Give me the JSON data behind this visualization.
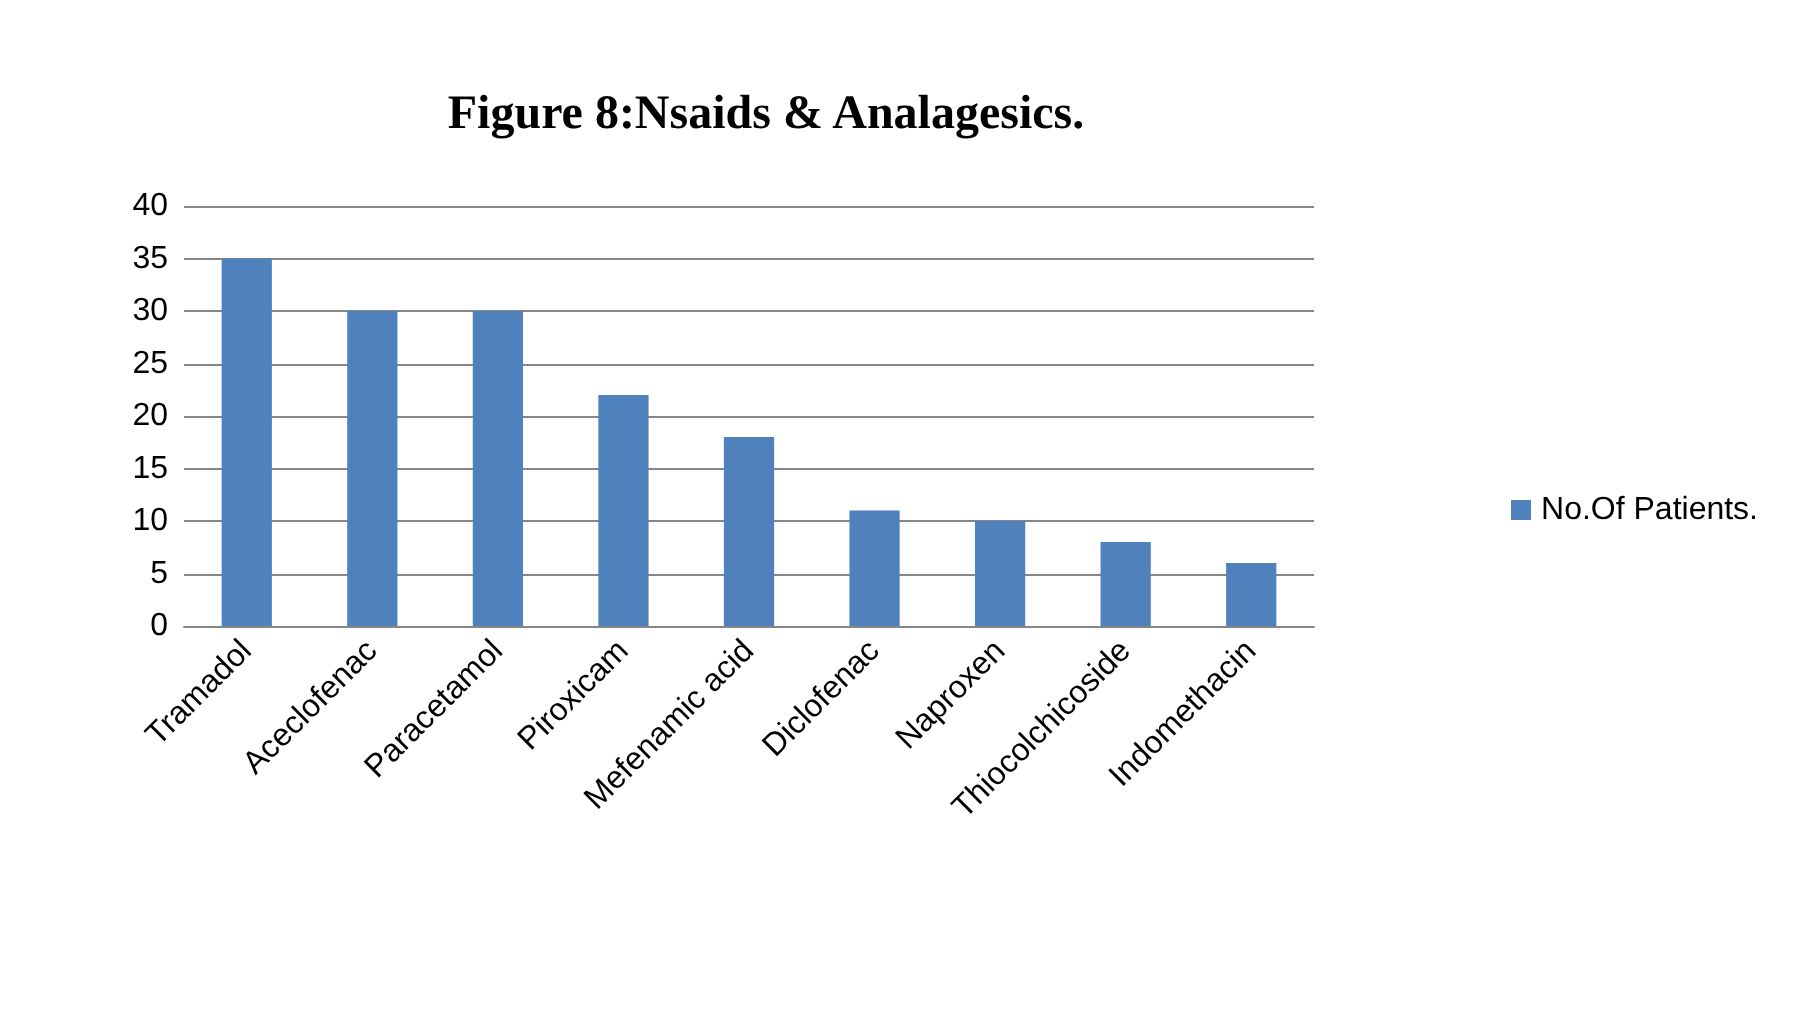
{
  "chart_data": {
    "type": "bar",
    "title": "Figure 8:Nsaids & Analagesics.",
    "categories": [
      "Tramadol",
      "Aceclofenac",
      "Paracetamol",
      "Piroxicam",
      "Mefenamic acid",
      "Diclofenac",
      "Naproxen",
      "Thiocolchicoside",
      "Indomethacin"
    ],
    "series": [
      {
        "name": "No.Of Patients.",
        "color": "#4f81bd",
        "values": [
          35,
          30,
          30,
          22,
          18,
          11,
          10,
          8,
          6
        ]
      }
    ],
    "ylim": [
      0,
      40
    ],
    "yticks": [
      0,
      5,
      10,
      15,
      20,
      25,
      30,
      35,
      40
    ],
    "grid": "y",
    "legend": "right"
  }
}
